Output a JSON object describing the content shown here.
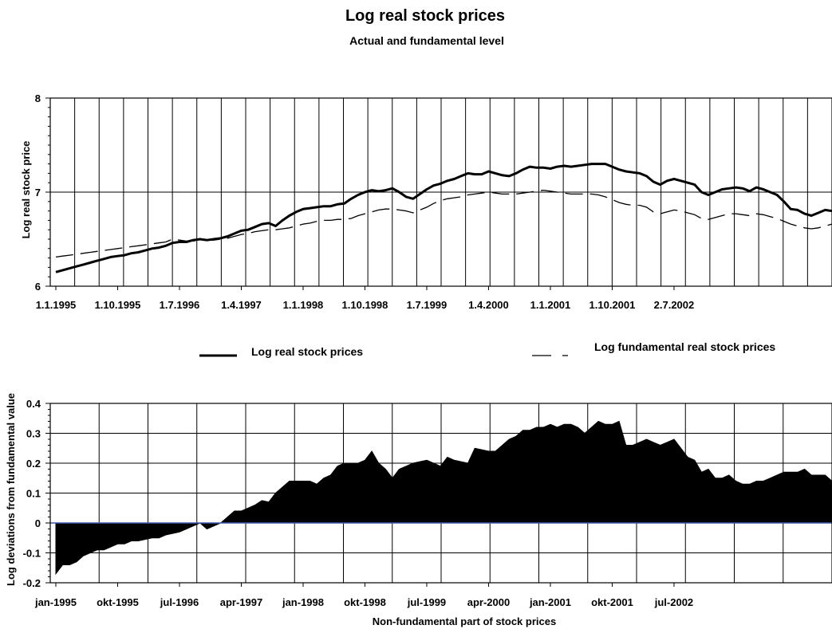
{
  "chart_data": [
    {
      "type": "line",
      "title": "Log real stock prices",
      "subtitle": "Actual and fundamental level",
      "ylabel": "Log real stock price",
      "xlabel": "",
      "ylim": [
        6,
        8
      ],
      "yticks": [
        "6",
        "7",
        "8"
      ],
      "x_tick_labels": [
        "1.1.1995",
        "1.10.1995",
        "1.7.1996",
        "1.4.1997",
        "1.1.1998",
        "1.10.1998",
        "1.7.1999",
        "1.4.2000",
        "1.1.2001",
        "1.10.2001",
        "2.7.2002"
      ],
      "grid": "vertical lines each period, horizontal line at 7",
      "legend_position": "below",
      "x_start": "1995-01",
      "x_end": "2002-12",
      "frequency": "monthly",
      "series": [
        {
          "name": "Log real stock prices",
          "style": "solid",
          "values": [
            6.15,
            6.17,
            6.19,
            6.21,
            6.23,
            6.25,
            6.27,
            6.29,
            6.31,
            6.32,
            6.33,
            6.35,
            6.36,
            6.38,
            6.4,
            6.41,
            6.43,
            6.46,
            6.47,
            6.47,
            6.49,
            6.5,
            6.49,
            6.5,
            6.51,
            6.53,
            6.56,
            6.59,
            6.6,
            6.63,
            6.66,
            6.67,
            6.64,
            6.7,
            6.75,
            6.79,
            6.82,
            6.83,
            6.84,
            6.85,
            6.85,
            6.87,
            6.88,
            6.93,
            6.97,
            7.0,
            7.02,
            7.01,
            7.02,
            7.04,
            7.0,
            6.95,
            6.93,
            6.98,
            7.03,
            7.07,
            7.09,
            7.12,
            7.14,
            7.17,
            7.2,
            7.19,
            7.19,
            7.22,
            7.2,
            7.18,
            7.17,
            7.2,
            7.24,
            7.27,
            7.26,
            7.26,
            7.25,
            7.27,
            7.28,
            7.27,
            7.28,
            7.29,
            7.3,
            7.3,
            7.3,
            7.27,
            7.24,
            7.22,
            7.21,
            7.2,
            7.17,
            7.11,
            7.08,
            7.12,
            7.14,
            7.12,
            7.1,
            7.08,
            7.0,
            6.97,
            7.0,
            7.03,
            7.04,
            7.05,
            7.04,
            7.01,
            7.05,
            7.03,
            7.0,
            6.97,
            6.9,
            6.82,
            6.81,
            6.77,
            6.75,
            6.78,
            6.81,
            6.8
          ]
        },
        {
          "name": "Log fundamental real stock prices",
          "style": "dashed",
          "values": [
            6.31,
            6.32,
            6.33,
            6.34,
            6.35,
            6.36,
            6.37,
            6.38,
            6.39,
            6.4,
            6.41,
            6.42,
            6.43,
            6.44,
            6.45,
            6.46,
            6.47,
            6.5,
            6.49,
            6.48,
            6.48,
            6.49,
            6.49,
            6.49,
            6.5,
            6.51,
            6.53,
            6.55,
            6.56,
            6.58,
            6.59,
            6.6,
            6.6,
            6.61,
            6.62,
            6.64,
            6.66,
            6.67,
            6.69,
            6.7,
            6.7,
            6.71,
            6.71,
            6.72,
            6.75,
            6.77,
            6.79,
            6.81,
            6.82,
            6.82,
            6.81,
            6.8,
            6.78,
            6.81,
            6.84,
            6.88,
            6.91,
            6.93,
            6.94,
            6.95,
            6.97,
            6.98,
            6.99,
            7.0,
            6.99,
            6.98,
            6.98,
            6.98,
            6.99,
            7.0,
            7.01,
            7.02,
            7.01,
            7.0,
            6.99,
            6.98,
            6.98,
            6.98,
            6.98,
            6.97,
            6.95,
            6.92,
            6.89,
            6.87,
            6.86,
            6.86,
            6.84,
            6.79,
            6.77,
            6.79,
            6.81,
            6.8,
            6.78,
            6.76,
            6.72,
            6.71,
            6.73,
            6.75,
            6.77,
            6.77,
            6.76,
            6.75,
            6.77,
            6.76,
            6.74,
            6.72,
            6.69,
            6.66,
            6.64,
            6.62,
            6.61,
            6.62,
            6.64,
            6.66
          ]
        }
      ]
    },
    {
      "type": "area",
      "title": "",
      "xlabel": "Non-fundamental part of stock prices",
      "ylabel": "Log deviations from fundamental value",
      "ylim": [
        -0.2,
        0.4
      ],
      "yticks": [
        "-0.2",
        "-0.1",
        "0",
        "0.1",
        "0.2",
        "0.3",
        "0.4"
      ],
      "x_tick_labels": [
        "jan-1995",
        "okt-1995",
        "jul-1996",
        "apr-1997",
        "jan-1998",
        "okt-1998",
        "jul-1999",
        "apr-2000",
        "jan-2001",
        "okt-2001",
        "jul-2002"
      ],
      "grid": "horizontal and vertical gridlines",
      "x_start": "1995-01",
      "x_end": "2002-12",
      "frequency": "monthly",
      "series": [
        {
          "name": "",
          "values": [
            -0.17,
            -0.14,
            -0.14,
            -0.13,
            -0.11,
            -0.1,
            -0.09,
            -0.09,
            -0.08,
            -0.07,
            -0.07,
            -0.06,
            -0.06,
            -0.055,
            -0.05,
            -0.05,
            -0.04,
            -0.035,
            -0.03,
            -0.02,
            -0.01,
            0.0,
            -0.02,
            -0.01,
            0.0,
            0.02,
            0.04,
            0.04,
            0.05,
            0.06,
            0.075,
            0.07,
            0.1,
            0.12,
            0.14,
            0.14,
            0.14,
            0.14,
            0.13,
            0.15,
            0.16,
            0.19,
            0.2,
            0.2,
            0.2,
            0.21,
            0.24,
            0.2,
            0.18,
            0.15,
            0.18,
            0.19,
            0.2,
            0.205,
            0.21,
            0.2,
            0.19,
            0.22,
            0.21,
            0.205,
            0.2,
            0.25,
            0.245,
            0.24,
            0.24,
            0.26,
            0.28,
            0.29,
            0.31,
            0.31,
            0.32,
            0.32,
            0.33,
            0.32,
            0.33,
            0.33,
            0.32,
            0.3,
            0.32,
            0.34,
            0.33,
            0.33,
            0.34,
            0.26,
            0.26,
            0.27,
            0.28,
            0.27,
            0.26,
            0.27,
            0.28,
            0.25,
            0.22,
            0.21,
            0.17,
            0.18,
            0.15,
            0.15,
            0.16,
            0.14,
            0.13,
            0.13,
            0.14,
            0.14,
            0.15,
            0.16,
            0.17,
            0.17,
            0.17,
            0.18,
            0.16,
            0.16,
            0.16,
            0.14
          ]
        }
      ]
    }
  ]
}
